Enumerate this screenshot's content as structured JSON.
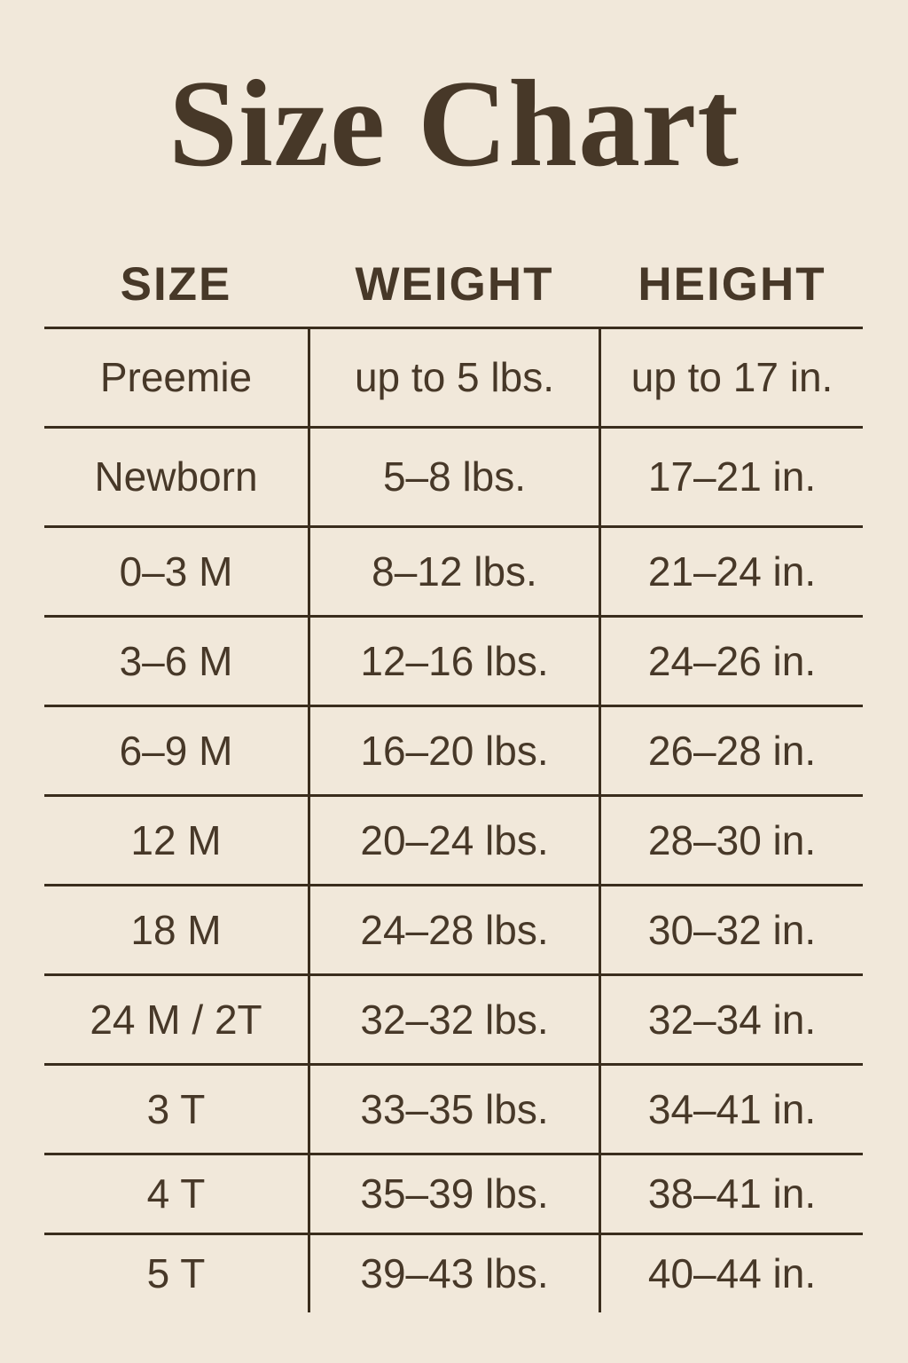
{
  "title": "Size Chart",
  "colors": {
    "background": "#f1e8da",
    "text": "#473828",
    "line": "#3a2d1d"
  },
  "chart_data": {
    "type": "table",
    "title": "Size Chart",
    "columns": [
      "SIZE",
      "WEIGHT",
      "HEIGHT"
    ],
    "rows": [
      {
        "size": "Preemie",
        "weight": "up to 5 lbs.",
        "height": "up to 17 in."
      },
      {
        "size": "Newborn",
        "weight": "5–8 lbs.",
        "height": "17–21 in."
      },
      {
        "size": "0–3 M",
        "weight": "8–12 lbs.",
        "height": "21–24 in."
      },
      {
        "size": "3–6 M",
        "weight": "12–16 lbs.",
        "height": "24–26 in."
      },
      {
        "size": "6–9 M",
        "weight": "16–20 lbs.",
        "height": "26–28 in."
      },
      {
        "size": "12 M",
        "weight": "20–24 lbs.",
        "height": "28–30 in."
      },
      {
        "size": "18 M",
        "weight": "24–28 lbs.",
        "height": "30–32 in."
      },
      {
        "size": "24 M / 2T",
        "weight": "32–32 lbs.",
        "height": "32–34 in."
      },
      {
        "size": "3 T",
        "weight": "33–35 lbs.",
        "height": "34–41 in."
      },
      {
        "size": "4 T",
        "weight": "35–39 lbs.",
        "height": "38–41 in."
      },
      {
        "size": "5 T",
        "weight": "39–43 lbs.",
        "height": "40–44 in."
      }
    ]
  }
}
